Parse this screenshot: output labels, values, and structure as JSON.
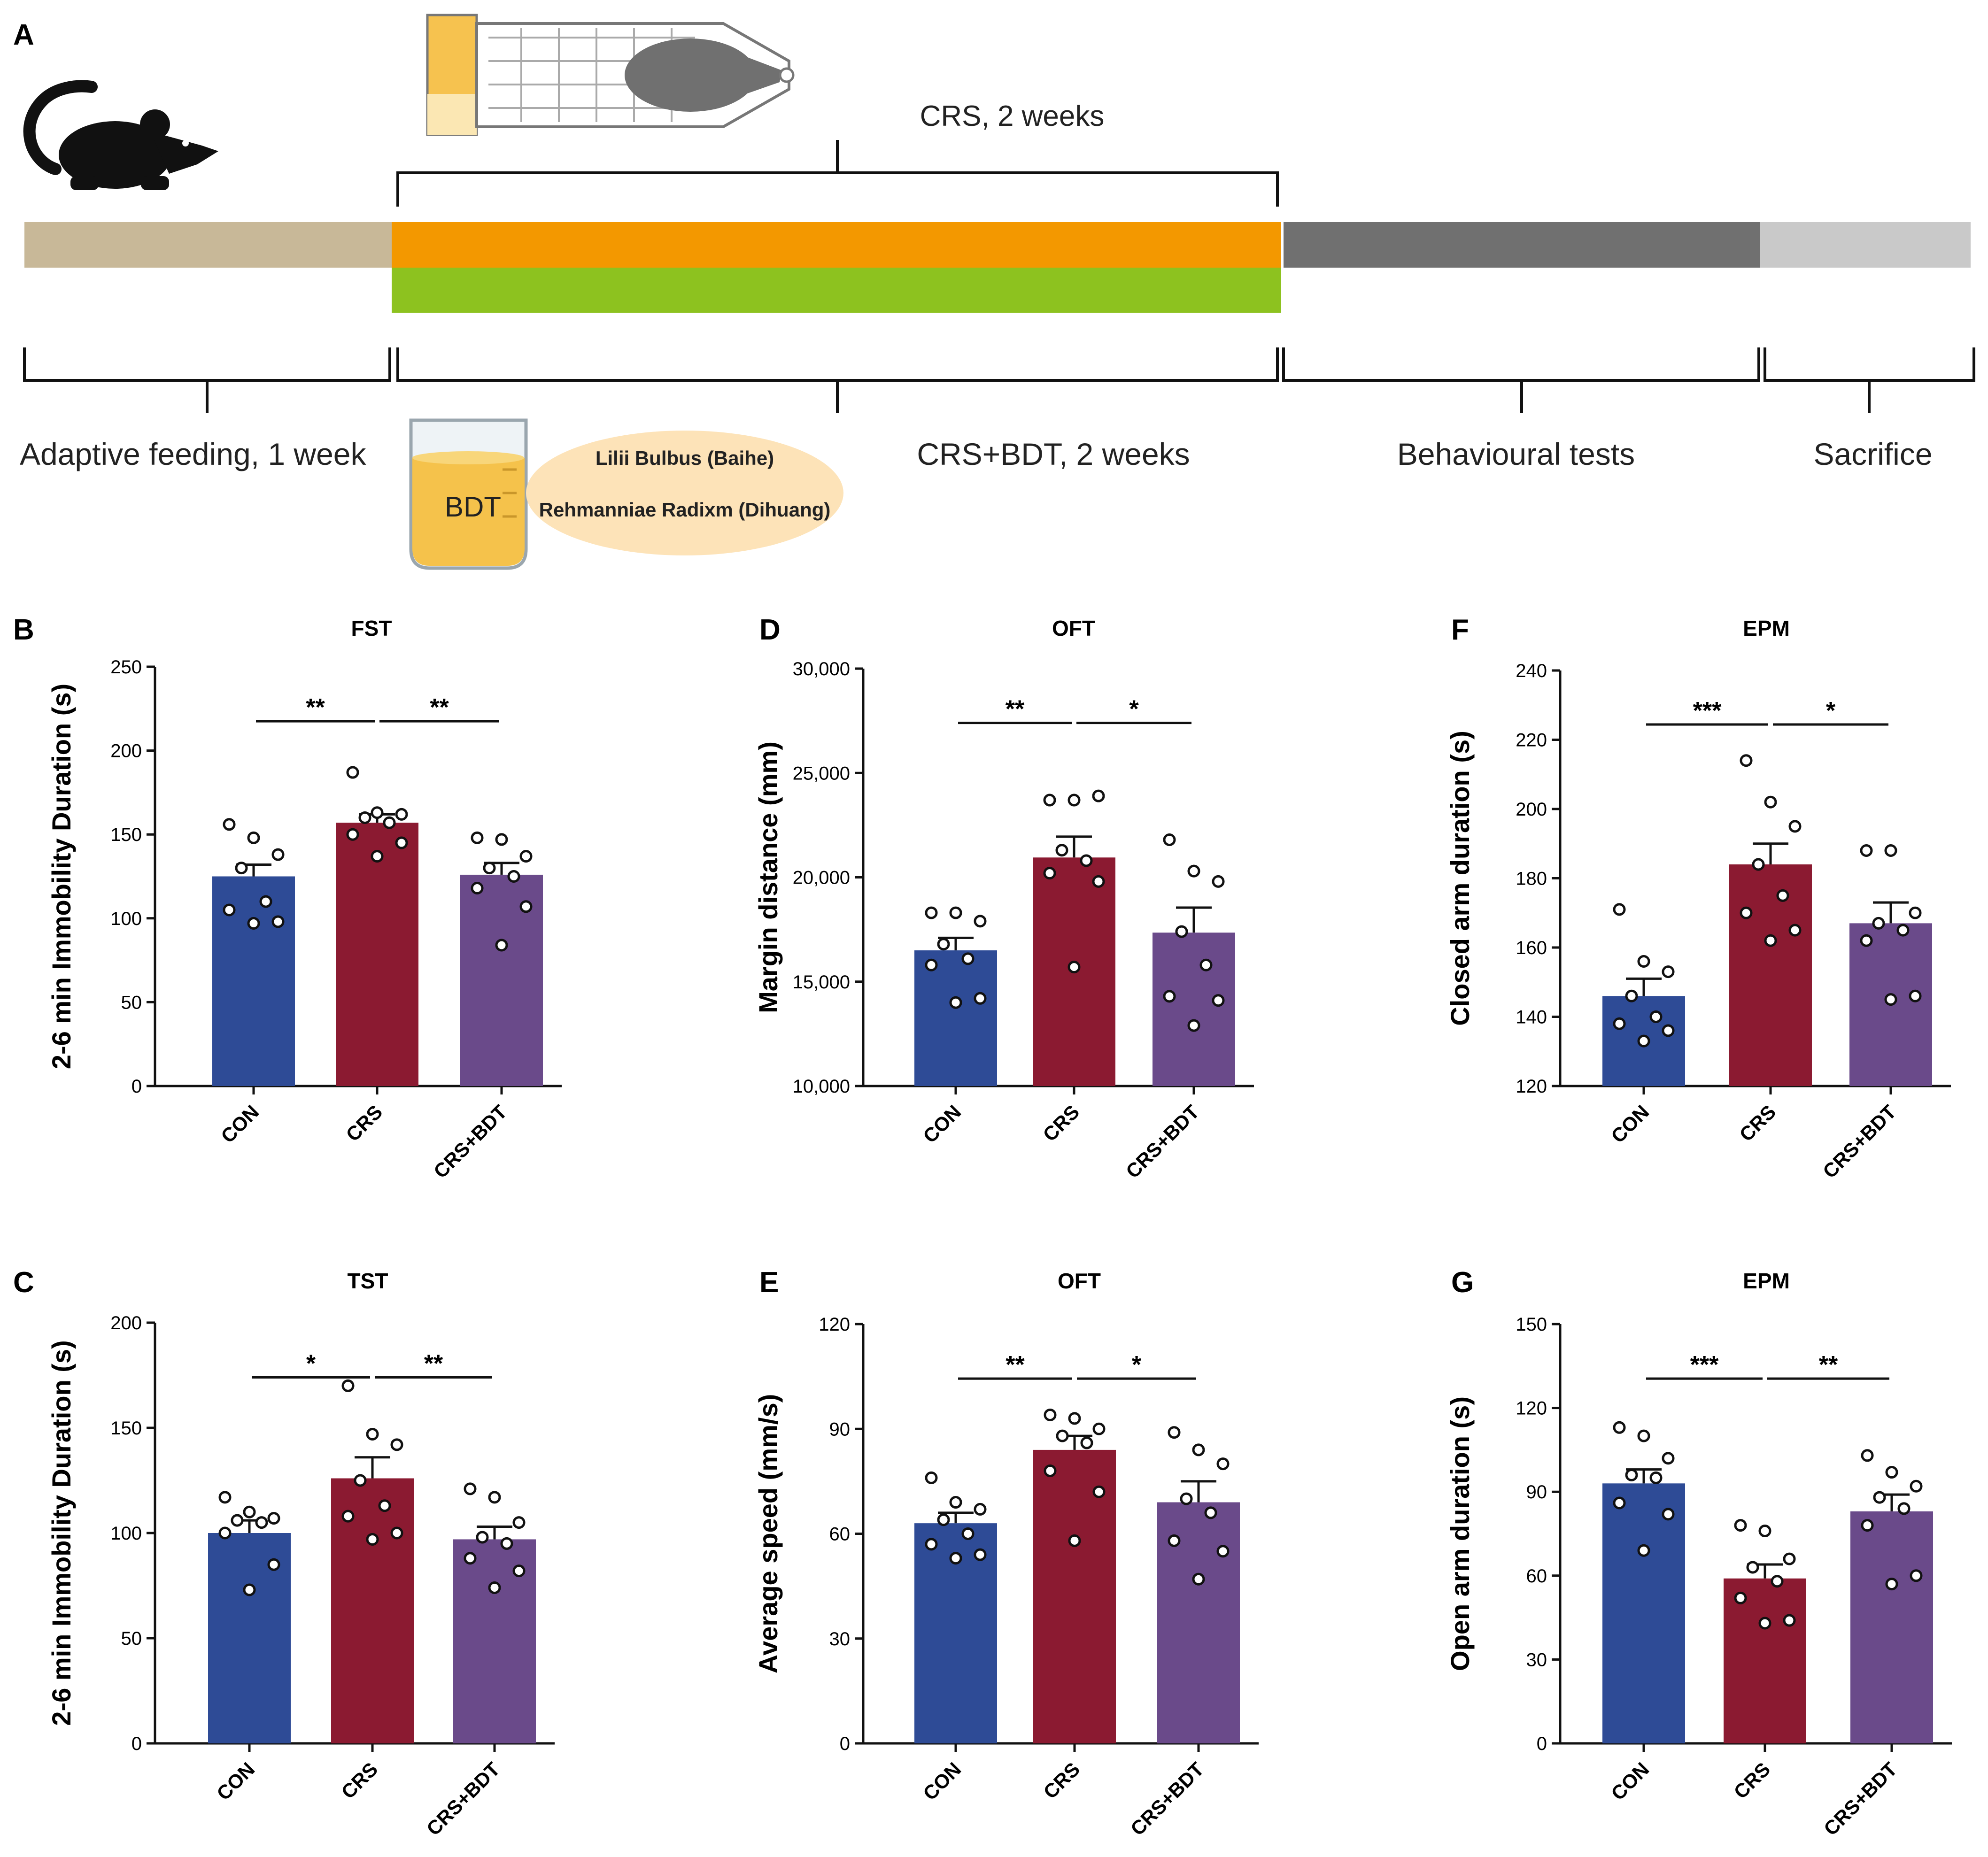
{
  "timeline": {
    "panel_letter": "A",
    "crs_label": "CRS, 2 weeks",
    "adaptive_label": "Adaptive feeding, 1 week",
    "crs_bdt_label": "CRS+BDT, 2 weeks",
    "behaviour_label": "Behavioural tests",
    "sacrifice_label": "Sacrifice",
    "beaker_label": "BDT",
    "herb1": "Lilii Bulbus (Baihe)",
    "herb2": "Rehmanniae Radixm (Dihuang)",
    "colors": {
      "adaptive": "#c8b898",
      "crs": "#f39800",
      "bdt": "#8dc21f",
      "behaviour": "#707070",
      "sacrifice": "#c9c9c9",
      "herb_bubble": "#fde3b8",
      "beaker_liquid": "#f5c24b"
    }
  },
  "group_colors": [
    "#2e4b96",
    "#8b1a31",
    "#6a4a8a"
  ],
  "chart_data": [
    {
      "id": "B",
      "letter": "B",
      "type": "bar",
      "title": "FST",
      "ylabel": "2-6 min Immobility Duration (s)",
      "categories": [
        "CON",
        "CRS",
        "CRS+BDT"
      ],
      "values": [
        125,
        157,
        126
      ],
      "sem": [
        7,
        5,
        7
      ],
      "ylim": [
        0,
        250
      ],
      "yticks": [
        "0",
        "50",
        "100",
        "150",
        "200",
        "250"
      ],
      "points": [
        [
          156,
          148,
          138,
          130,
          110,
          105,
          98,
          97
        ],
        [
          187,
          163,
          162,
          160,
          157,
          150,
          145,
          137
        ],
        [
          148,
          147,
          137,
          130,
          125,
          118,
          107,
          84
        ]
      ],
      "sig": [
        {
          "label": "**",
          "from": 0,
          "to": 1
        },
        {
          "label": "**",
          "from": 1,
          "to": 2
        }
      ]
    },
    {
      "id": "D",
      "letter": "D",
      "type": "bar",
      "title": "OFT",
      "ylabel": "Margin distance (mm)",
      "categories": [
        "CON",
        "CRS",
        "CRS+BDT"
      ],
      "values": [
        16500,
        20950,
        17350
      ],
      "sem": [
        600,
        1000,
        1200
      ],
      "ylim": [
        10000,
        30000
      ],
      "yticks": [
        "10,000",
        "15,000",
        "20,000",
        "25,000",
        "30,000"
      ],
      "points": [
        [
          18300,
          18300,
          17900,
          16800,
          16100,
          15800,
          14200,
          14000
        ],
        [
          23700,
          23700,
          23900,
          21300,
          20800,
          20200,
          19800,
          15700
        ],
        [
          21800,
          20300,
          19800,
          17400,
          15800,
          14300,
          14100,
          12900
        ]
      ],
      "sig": [
        {
          "label": "**",
          "from": 0,
          "to": 1
        },
        {
          "label": "*",
          "from": 1,
          "to": 2
        }
      ]
    },
    {
      "id": "F",
      "letter": "F",
      "type": "bar",
      "title": "EPM",
      "ylabel": "Closed arm duration (s)",
      "categories": [
        "CON",
        "CRS",
        "CRS+BDT"
      ],
      "values": [
        146,
        184,
        167
      ],
      "sem": [
        5,
        6,
        6
      ],
      "ylim": [
        120,
        240
      ],
      "yticks": [
        "120",
        "140",
        "160",
        "180",
        "200",
        "220",
        "240"
      ],
      "points": [
        [
          171,
          156,
          153,
          146,
          140,
          138,
          136,
          133
        ],
        [
          214,
          202,
          195,
          184,
          175,
          170,
          165,
          162
        ],
        [
          188,
          188,
          170,
          167,
          165,
          162,
          146,
          145
        ]
      ],
      "sig": [
        {
          "label": "***",
          "from": 0,
          "to": 1
        },
        {
          "label": "*",
          "from": 1,
          "to": 2
        }
      ]
    },
    {
      "id": "C",
      "letter": "C",
      "type": "bar",
      "title": "TST",
      "ylabel": "2-6 min Immobility Duration (s)",
      "categories": [
        "CON",
        "CRS",
        "CRS+BDT"
      ],
      "values": [
        100,
        126,
        97
      ],
      "sem": [
        6,
        10,
        6
      ],
      "ylim": [
        0,
        200
      ],
      "yticks": [
        "0",
        "50",
        "100",
        "150",
        "200"
      ],
      "points": [
        [
          117,
          110,
          107,
          106,
          105,
          100,
          85,
          73
        ],
        [
          170,
          147,
          142,
          125,
          113,
          108,
          100,
          97
        ],
        [
          121,
          117,
          105,
          98,
          95,
          88,
          82,
          74
        ]
      ],
      "sig": [
        {
          "label": "*",
          "from": 0,
          "to": 1
        },
        {
          "label": "**",
          "from": 1,
          "to": 2
        }
      ]
    },
    {
      "id": "E",
      "letter": "E",
      "type": "bar",
      "title": "OFT",
      "ylabel": "Average speed (mm/s)",
      "categories": [
        "CON",
        "CRS",
        "CRS+BDT"
      ],
      "values": [
        63,
        84,
        69
      ],
      "sem": [
        3,
        4,
        6
      ],
      "ylim": [
        0,
        120
      ],
      "yticks": [
        "0",
        "30",
        "60",
        "90",
        "120"
      ],
      "points": [
        [
          76,
          69,
          67,
          64,
          60,
          57,
          54,
          53
        ],
        [
          94,
          93,
          90,
          88,
          86,
          78,
          72,
          58
        ],
        [
          89,
          84,
          80,
          70,
          66,
          58,
          55,
          47
        ]
      ],
      "sig": [
        {
          "label": "**",
          "from": 0,
          "to": 1
        },
        {
          "label": "*",
          "from": 1,
          "to": 2
        }
      ]
    },
    {
      "id": "G",
      "letter": "G",
      "type": "bar",
      "title": "EPM",
      "ylabel": "Open arm duration (s)",
      "categories": [
        "CON",
        "CRS",
        "CRS+BDT"
      ],
      "values": [
        93,
        59,
        83
      ],
      "sem": [
        5,
        5,
        6
      ],
      "ylim": [
        0,
        150
      ],
      "yticks": [
        "0",
        "30",
        "60",
        "90",
        "120",
        "150"
      ],
      "points": [
        [
          113,
          110,
          102,
          96,
          95,
          86,
          82,
          69
        ],
        [
          78,
          76,
          66,
          63,
          58,
          52,
          44,
          43
        ],
        [
          103,
          97,
          92,
          88,
          84,
          78,
          60,
          57
        ]
      ],
      "sig": [
        {
          "label": "***",
          "from": 0,
          "to": 1
        },
        {
          "label": "**",
          "from": 1,
          "to": 2
        }
      ]
    }
  ]
}
